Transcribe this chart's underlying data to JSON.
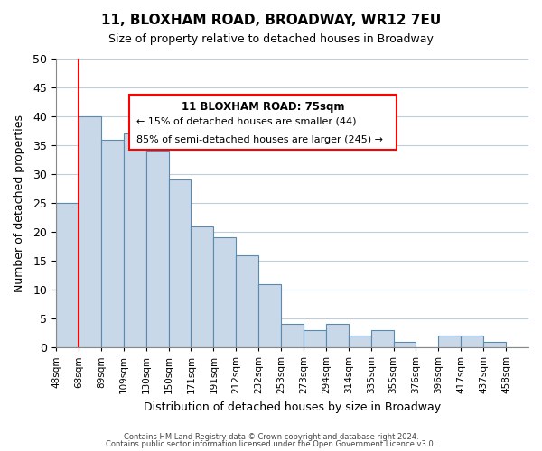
{
  "title": "11, BLOXHAM ROAD, BROADWAY, WR12 7EU",
  "subtitle": "Size of property relative to detached houses in Broadway",
  "xlabel": "Distribution of detached houses by size in Broadway",
  "ylabel": "Number of detached properties",
  "bar_color": "#c8d8e8",
  "bar_edge_color": "#5a8ab0",
  "bins": [
    "48sqm",
    "68sqm",
    "89sqm",
    "109sqm",
    "130sqm",
    "150sqm",
    "171sqm",
    "191sqm",
    "212sqm",
    "232sqm",
    "253sqm",
    "273sqm",
    "294sqm",
    "314sqm",
    "335sqm",
    "355sqm",
    "376sqm",
    "396sqm",
    "417sqm",
    "437sqm",
    "458sqm"
  ],
  "values": [
    25,
    40,
    36,
    37,
    34,
    29,
    21,
    19,
    16,
    11,
    4,
    3,
    4,
    2,
    3,
    1,
    0,
    2,
    2,
    1,
    0
  ],
  "ylim": [
    0,
    50
  ],
  "yticks": [
    0,
    5,
    10,
    15,
    20,
    25,
    30,
    35,
    40,
    45,
    50
  ],
  "property_line_x": 1,
  "property_label": "11 BLOXHAM ROAD: 75sqm",
  "annotation_line1": "← 15% of detached houses are smaller (44)",
  "annotation_line2": "85% of semi-detached houses are larger (245) →",
  "footer_line1": "Contains HM Land Registry data © Crown copyright and database right 2024.",
  "footer_line2": "Contains public sector information licensed under the Open Government Licence v3.0.",
  "background_color": "#ffffff",
  "grid_color": "#c0ccd8"
}
